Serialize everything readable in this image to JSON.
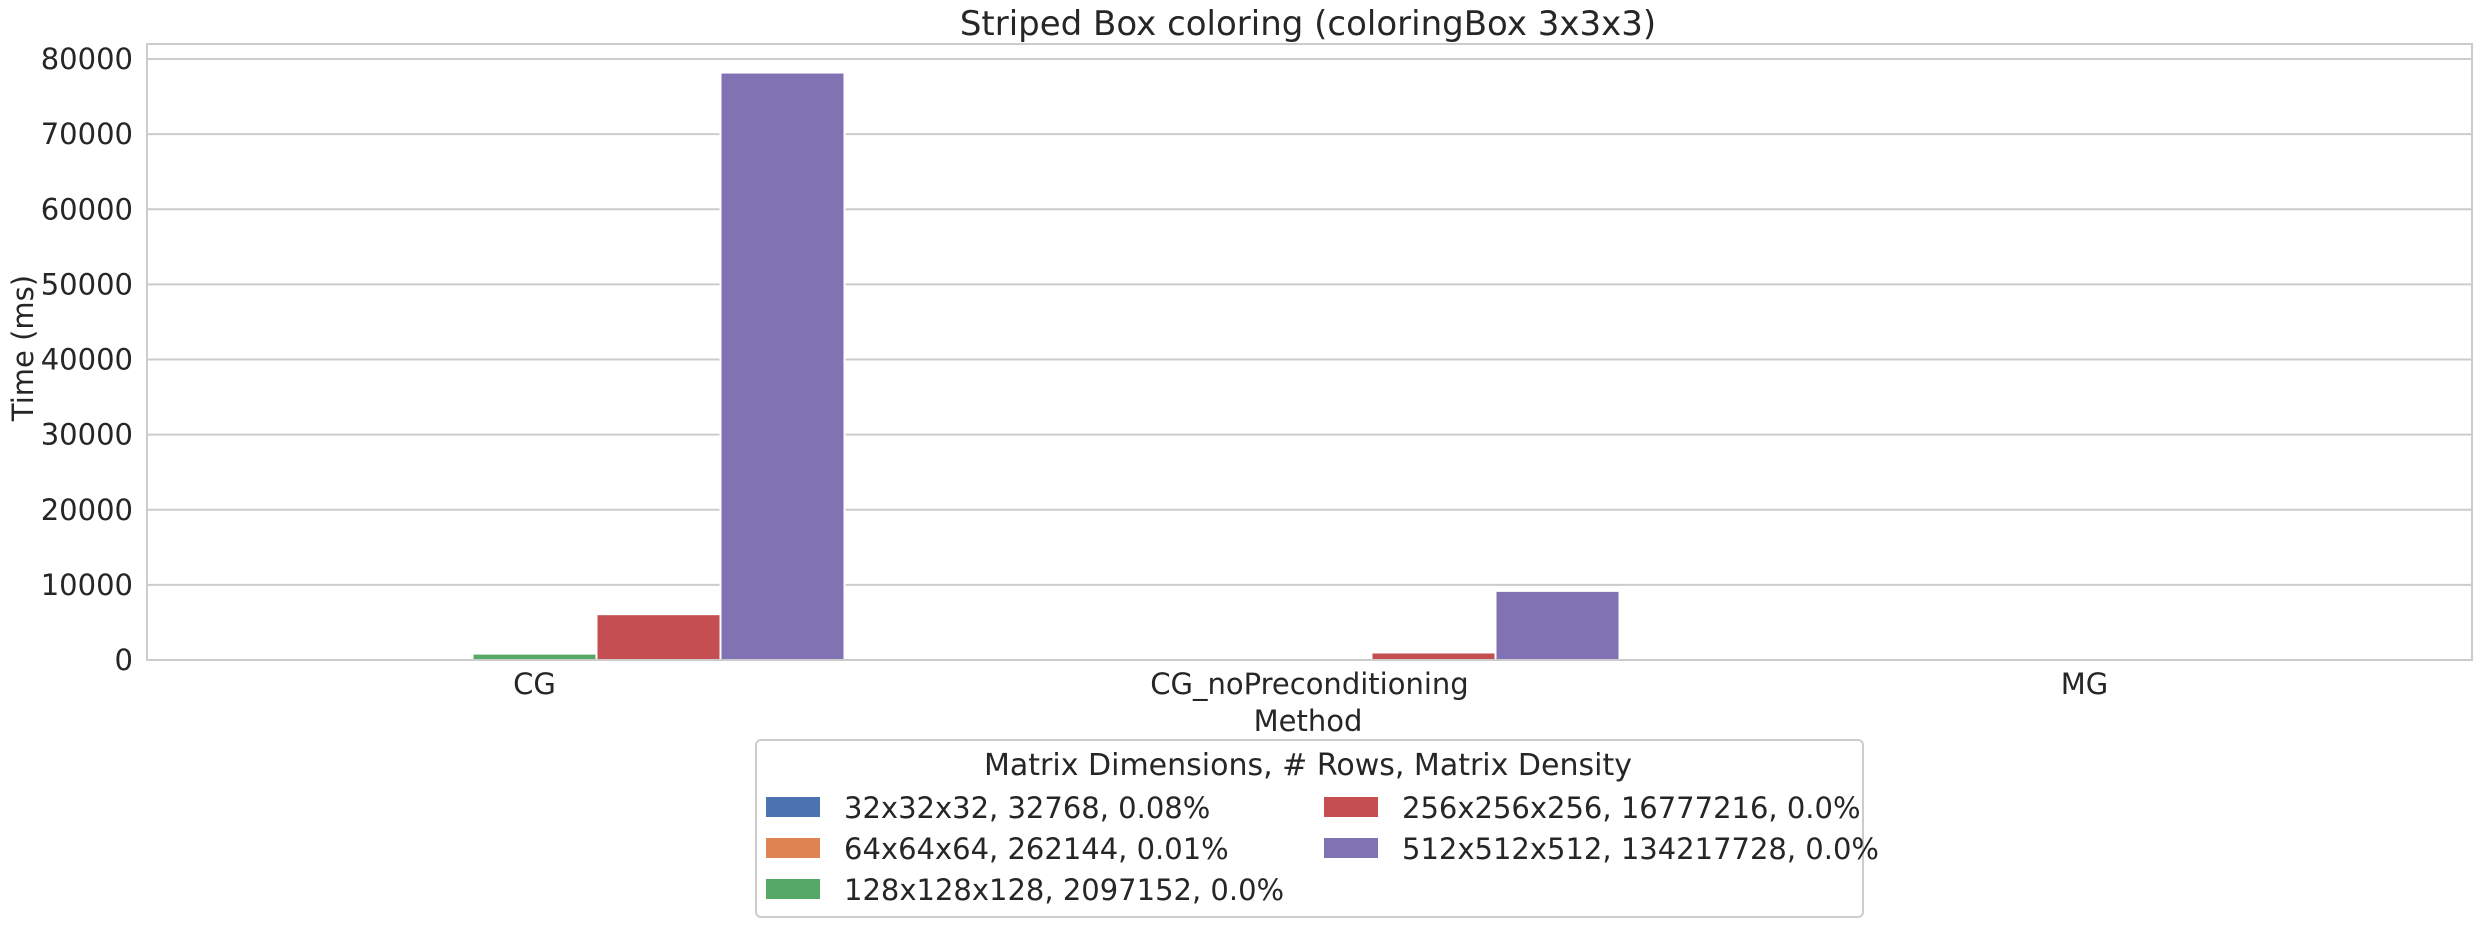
{
  "chart_data": {
    "type": "bar",
    "title": "Striped Box coloring (coloringBox 3x3x3)",
    "xlabel": "Method",
    "ylabel": "Time (ms)",
    "categories": [
      "CG",
      "CG_noPreconditioning",
      "MG"
    ],
    "ylim": [
      0,
      82000
    ],
    "yticks": [
      0,
      10000,
      20000,
      30000,
      40000,
      50000,
      60000,
      70000,
      80000
    ],
    "grid": true,
    "legend": {
      "title": "Matrix Dimensions, # Rows, Matrix Density",
      "placement": "bottom-center",
      "columns": 2
    },
    "series": [
      {
        "name": "32x32x32, 32768, 0.08%",
        "color": "#4c72b0",
        "values": [
          20,
          5,
          2
        ]
      },
      {
        "name": "64x64x64, 262144, 0.01%",
        "color": "#dd8452",
        "values": [
          150,
          20,
          8
        ]
      },
      {
        "name": "128x128x128, 2097152, 0.0%",
        "color": "#55a868",
        "values": [
          850,
          110,
          25
        ]
      },
      {
        "name": "256x256x256, 16777216, 0.0%",
        "color": "#c44e52",
        "values": [
          6100,
          1000,
          130
        ]
      },
      {
        "name": "512x512x512, 134217728, 0.0%",
        "color": "#8172b3",
        "values": [
          78200,
          9200,
          210
        ]
      }
    ]
  }
}
